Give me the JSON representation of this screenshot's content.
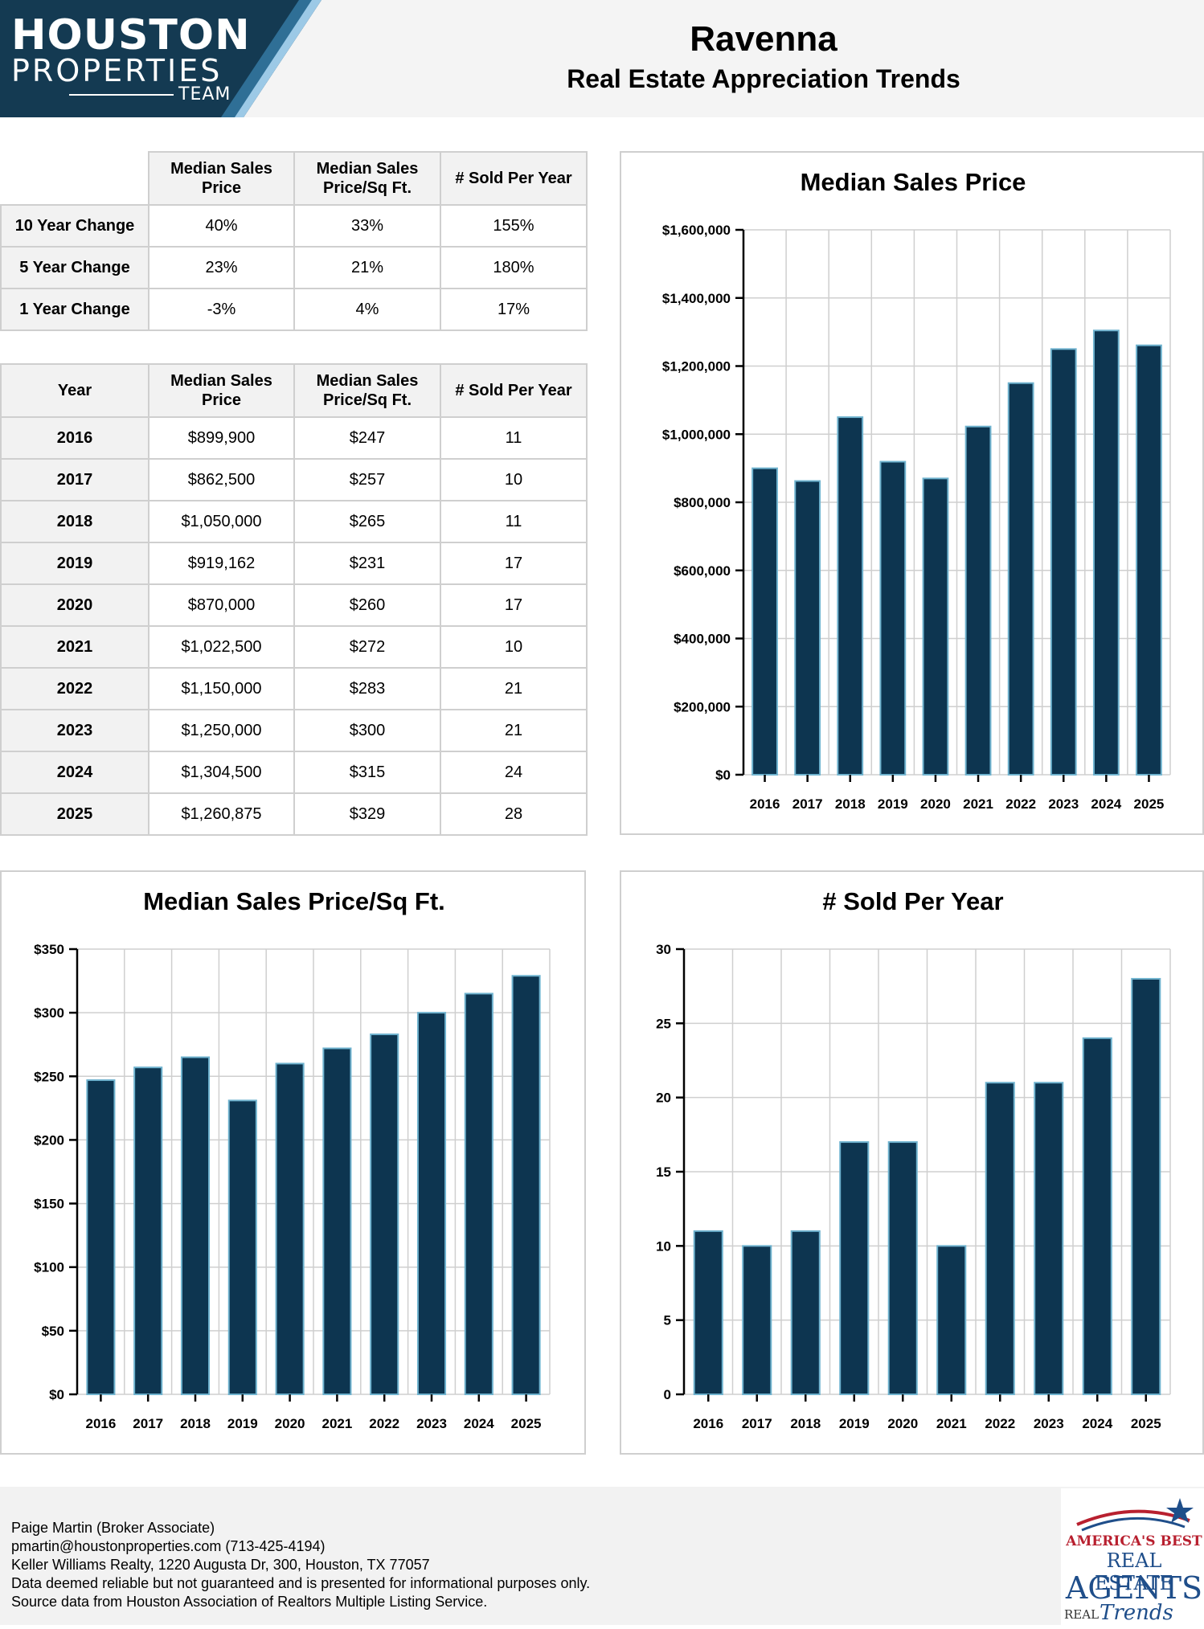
{
  "header": {
    "logo": {
      "line1": "HOUSTON",
      "line2": "PROPERTIES",
      "line3": "TEAM"
    },
    "title": "Ravenna",
    "subtitle": "Real Estate Appreciation Trends"
  },
  "change_table": {
    "headers": [
      "Median Sales Price",
      "Median Sales Price/Sq Ft.",
      "# Sold Per Year"
    ],
    "rows": [
      {
        "label": "10 Year Change",
        "values": [
          "40%",
          "33%",
          "155%"
        ]
      },
      {
        "label": "5 Year Change",
        "values": [
          "23%",
          "21%",
          "180%"
        ]
      },
      {
        "label": "1 Year Change",
        "values": [
          "-3%",
          "4%",
          "17%"
        ]
      }
    ]
  },
  "year_table": {
    "headers": [
      "Year",
      "Median Sales Price",
      "Median Sales Price/Sq Ft.",
      "# Sold Per Year"
    ],
    "rows": [
      [
        "2016",
        "$899,900",
        "$247",
        "11"
      ],
      [
        "2017",
        "$862,500",
        "$257",
        "10"
      ],
      [
        "2018",
        "$1,050,000",
        "$265",
        "11"
      ],
      [
        "2019",
        "$919,162",
        "$231",
        "17"
      ],
      [
        "2020",
        "$870,000",
        "$260",
        "17"
      ],
      [
        "2021",
        "$1,022,500",
        "$272",
        "10"
      ],
      [
        "2022",
        "$1,150,000",
        "$283",
        "21"
      ],
      [
        "2023",
        "$1,250,000",
        "$300",
        "21"
      ],
      [
        "2024",
        "$1,304,500",
        "$315",
        "24"
      ],
      [
        "2025",
        "$1,260,875",
        "$329",
        "28"
      ]
    ]
  },
  "chart_data": [
    {
      "type": "bar",
      "title": "Median Sales Price",
      "categories": [
        "2016",
        "2017",
        "2018",
        "2019",
        "2020",
        "2021",
        "2022",
        "2023",
        "2024",
        "2025"
      ],
      "values": [
        899900,
        862500,
        1050000,
        919162,
        870000,
        1022500,
        1150000,
        1250000,
        1304500,
        1260875
      ],
      "yticks": [
        0,
        200000,
        400000,
        600000,
        800000,
        1000000,
        1200000,
        1400000,
        1600000
      ],
      "ytick_labels": [
        "$0",
        "$200,000",
        "$400,000",
        "$600,000",
        "$800,000",
        "$1,000,000",
        "$1,200,000",
        "$1,400,000",
        "$1,600,000"
      ],
      "ylim": [
        0,
        1600000
      ],
      "xlabel": "",
      "ylabel": ""
    },
    {
      "type": "bar",
      "title": "Median Sales Price/Sq Ft.",
      "categories": [
        "2016",
        "2017",
        "2018",
        "2019",
        "2020",
        "2021",
        "2022",
        "2023",
        "2024",
        "2025"
      ],
      "values": [
        247,
        257,
        265,
        231,
        260,
        272,
        283,
        300,
        315,
        329
      ],
      "yticks": [
        0,
        50,
        100,
        150,
        200,
        250,
        300,
        350
      ],
      "ytick_labels": [
        "$0",
        "$50",
        "$100",
        "$150",
        "$200",
        "$250",
        "$300",
        "$350"
      ],
      "ylim": [
        0,
        350
      ],
      "xlabel": "",
      "ylabel": ""
    },
    {
      "type": "bar",
      "title": "# Sold Per Year",
      "categories": [
        "2016",
        "2017",
        "2018",
        "2019",
        "2020",
        "2021",
        "2022",
        "2023",
        "2024",
        "2025"
      ],
      "values": [
        11,
        10,
        11,
        17,
        17,
        10,
        21,
        21,
        24,
        28
      ],
      "yticks": [
        0,
        5,
        10,
        15,
        20,
        25,
        30
      ],
      "ytick_labels": [
        "0",
        "5",
        "10",
        "15",
        "20",
        "25",
        "30"
      ],
      "ylim": [
        0,
        30
      ],
      "xlabel": "",
      "ylabel": ""
    }
  ],
  "footer": {
    "lines": [
      "Paige Martin (Broker Associate)",
      "pmartin@houstonproperties.com (713-425-4194)",
      "Keller Williams Realty, 1220 Augusta Dr, 300, Houston, TX 77057",
      "Data deemed reliable but not guaranteed and is presented for informational purposes only.",
      "Source data from Houston Association of Realtors Multiple Listing Service."
    ],
    "badge": {
      "line1": "AMERICA'S BEST",
      "line2": "REAL ESTATE",
      "line3": "AGENTS",
      "line4": "REAL",
      "line5": "Trends"
    }
  },
  "colors": {
    "bar": "#0d3550",
    "bar_edge": "#6fb3cf",
    "header_dark": "#143a52",
    "accent_light": "#9cc9e6"
  }
}
